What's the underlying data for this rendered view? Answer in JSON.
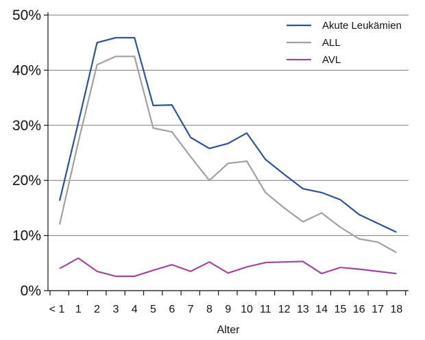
{
  "chart_data": {
    "type": "line",
    "title": "",
    "xlabel": "Alter",
    "ylabel": "",
    "categories": [
      "< 1",
      "1",
      "2",
      "3",
      "4",
      "5",
      "6",
      "7",
      "8",
      "9",
      "10",
      "11",
      "12",
      "13",
      "14",
      "15",
      "16",
      "17",
      "18"
    ],
    "yticks": [
      "0%",
      "10%",
      "20%",
      "30%",
      "40%",
      "50%"
    ],
    "ylim": [
      0,
      50
    ],
    "grid": true,
    "legend": "top-right",
    "series": [
      {
        "name": "Akute Leukämien",
        "color": "#2e4f9c",
        "values": [
          16.3,
          30.5,
          45.0,
          45.9,
          45.9,
          33.6,
          33.7,
          27.8,
          25.8,
          26.7,
          28.6,
          23.8,
          21.1,
          18.5,
          17.8,
          16.5,
          13.8,
          12.2,
          10.6
        ]
      },
      {
        "name": "ALL",
        "color": "#a0a0a0",
        "values": [
          12.0,
          27.0,
          41.0,
          42.5,
          42.5,
          29.5,
          28.8,
          24.3,
          20.0,
          23.1,
          23.5,
          17.8,
          15.0,
          12.5,
          14.1,
          11.5,
          9.4,
          8.8,
          6.9
        ]
      },
      {
        "name": "AVL",
        "color": "#a0479a",
        "values": [
          4.0,
          5.9,
          3.5,
          2.6,
          2.6,
          3.7,
          4.7,
          3.5,
          5.2,
          3.2,
          4.3,
          5.1,
          5.2,
          5.3,
          3.1,
          4.2,
          3.9,
          3.5,
          3.1
        ]
      }
    ]
  }
}
